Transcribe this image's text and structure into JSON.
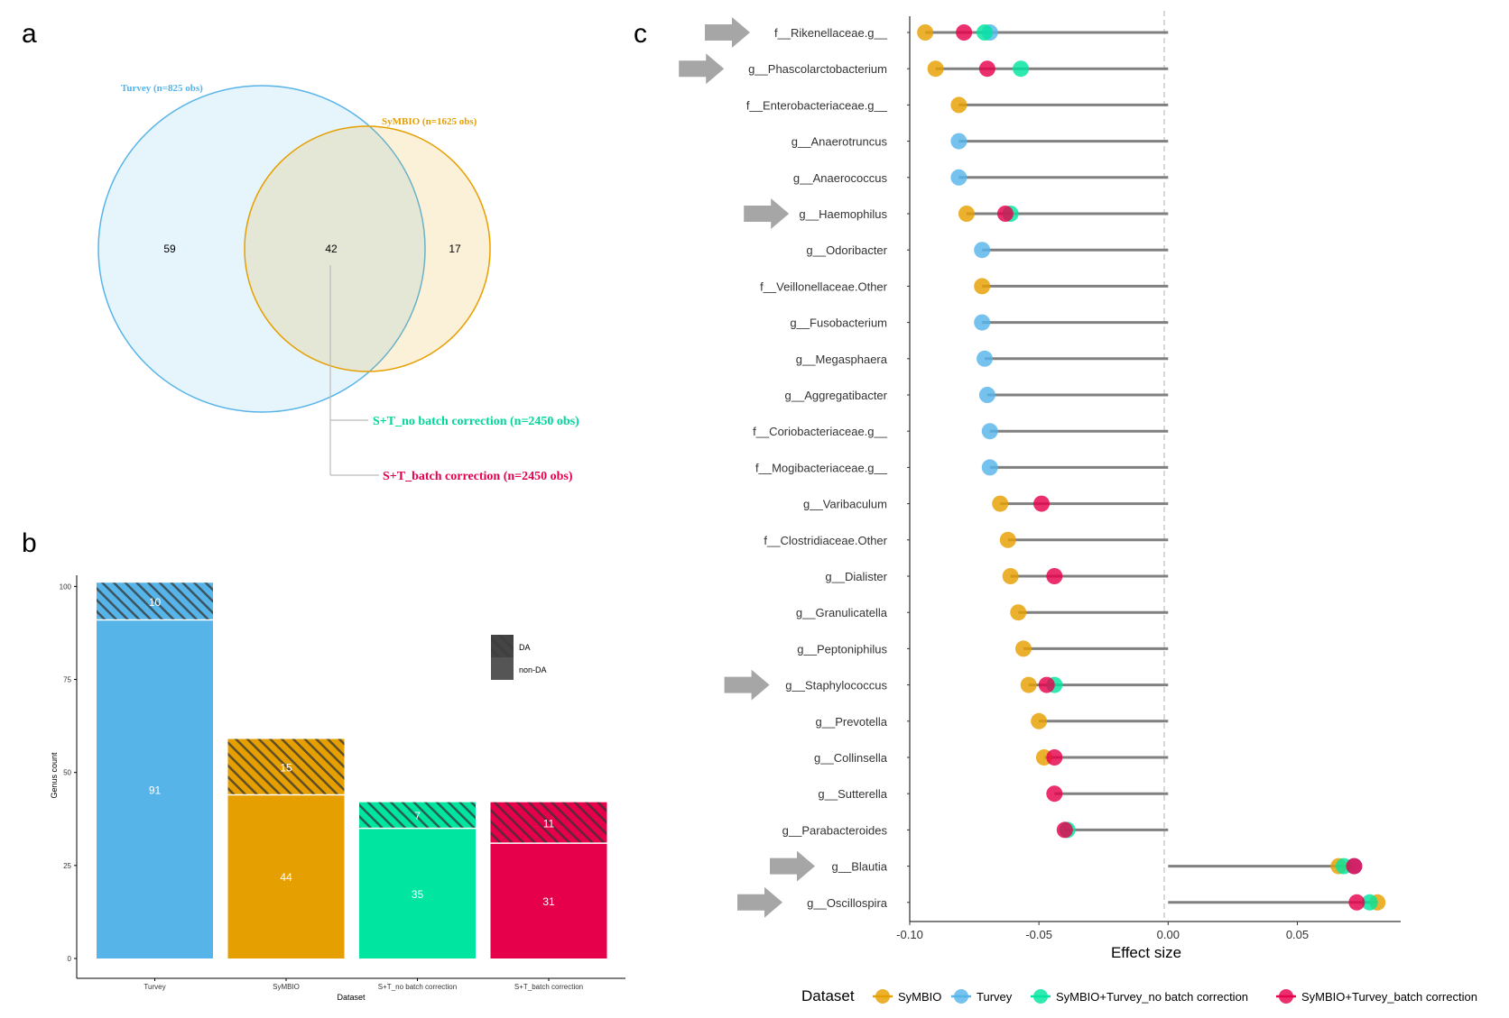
{
  "panels": {
    "a": "a",
    "b": "b",
    "c": "c"
  },
  "colors": {
    "turvey": "#56B4E9",
    "symbio": "#E69F00",
    "no_batch": "#00E5A0",
    "batch": "#E6004C",
    "arrow": "#A6A6A6",
    "stem": "#808080"
  },
  "chart_data": [
    {
      "type": "venn",
      "sets": [
        {
          "label": "Turvey (n=825 obs)",
          "only": "59"
        },
        {
          "label": "SyMBIO (n=1625 obs)",
          "only": "17"
        }
      ],
      "intersection": "42",
      "annotations": [
        "S+T_no batch correction (n=2450 obs)",
        "S+T_batch correction (n=2450 obs)"
      ]
    },
    {
      "type": "bar",
      "stacked": true,
      "xlabel": "Dataset",
      "ylabel": "Genus count",
      "ylim": [
        0,
        103
      ],
      "yticks": [
        0,
        25,
        50,
        75,
        100
      ],
      "categories": [
        "Turvey",
        "SyMBIO",
        "S+T_no batch correction",
        "S+T_batch correction"
      ],
      "series": [
        {
          "name": "non-DA",
          "values": [
            91,
            44,
            35,
            31
          ]
        },
        {
          "name": "DA",
          "values": [
            10,
            15,
            7,
            11
          ]
        }
      ],
      "legend": [
        "DA",
        "non-DA"
      ],
      "legend_position": "right"
    },
    {
      "type": "scatter",
      "subtype": "lollipop",
      "xlabel": "Effect size",
      "xlim": [
        -0.1,
        0.09
      ],
      "xticks": [
        "-0.10",
        "-0.05",
        "0.00",
        "0.05"
      ],
      "legend_title": "Dataset",
      "legend_position": "bottom",
      "series_names": [
        "SyMBIO",
        "Turvey",
        "SyMBIO+Turvey_no batch correction",
        "SyMBIO+Turvey_batch correction"
      ],
      "rows": [
        {
          "label": "f__Rikenellaceae.g__",
          "arrow": true,
          "symbio": -0.094,
          "turvey": -0.069,
          "no_batch": -0.071,
          "batch": -0.079
        },
        {
          "label": "g__Phascolarctobacterium",
          "arrow": true,
          "symbio": -0.09,
          "turvey": null,
          "no_batch": -0.057,
          "batch": -0.07
        },
        {
          "label": "f__Enterobacteriaceae.g__",
          "arrow": false,
          "symbio": -0.081,
          "turvey": null,
          "no_batch": null,
          "batch": null
        },
        {
          "label": "g__Anaerotruncus",
          "arrow": false,
          "symbio": null,
          "turvey": -0.081,
          "no_batch": null,
          "batch": null
        },
        {
          "label": "g__Anaerococcus",
          "arrow": false,
          "symbio": null,
          "turvey": -0.081,
          "no_batch": null,
          "batch": null
        },
        {
          "label": "g__Haemophilus",
          "arrow": true,
          "symbio": -0.078,
          "turvey": null,
          "no_batch": -0.061,
          "batch": -0.063
        },
        {
          "label": "g__Odoribacter",
          "arrow": false,
          "symbio": null,
          "turvey": -0.072,
          "no_batch": null,
          "batch": null
        },
        {
          "label": "f__Veillonellaceae.Other",
          "arrow": false,
          "symbio": -0.072,
          "turvey": null,
          "no_batch": null,
          "batch": null
        },
        {
          "label": "g__Fusobacterium",
          "arrow": false,
          "symbio": null,
          "turvey": -0.072,
          "no_batch": null,
          "batch": null
        },
        {
          "label": "g__Megasphaera",
          "arrow": false,
          "symbio": null,
          "turvey": -0.071,
          "no_batch": null,
          "batch": null
        },
        {
          "label": "g__Aggregatibacter",
          "arrow": false,
          "symbio": null,
          "turvey": -0.07,
          "no_batch": null,
          "batch": null
        },
        {
          "label": "f__Coriobacteriaceae.g__",
          "arrow": false,
          "symbio": null,
          "turvey": -0.069,
          "no_batch": null,
          "batch": null
        },
        {
          "label": "f__Mogibacteriaceae.g__",
          "arrow": false,
          "symbio": null,
          "turvey": -0.069,
          "no_batch": null,
          "batch": null
        },
        {
          "label": "g__Varibaculum",
          "arrow": false,
          "symbio": -0.065,
          "turvey": null,
          "no_batch": null,
          "batch": -0.049
        },
        {
          "label": "f__Clostridiaceae.Other",
          "arrow": false,
          "symbio": -0.062,
          "turvey": null,
          "no_batch": null,
          "batch": null
        },
        {
          "label": "g__Dialister",
          "arrow": false,
          "symbio": -0.061,
          "turvey": null,
          "no_batch": null,
          "batch": -0.044
        },
        {
          "label": "g__Granulicatella",
          "arrow": false,
          "symbio": -0.058,
          "turvey": null,
          "no_batch": null,
          "batch": null
        },
        {
          "label": "g__Peptoniphilus",
          "arrow": false,
          "symbio": -0.056,
          "turvey": null,
          "no_batch": null,
          "batch": null
        },
        {
          "label": "g__Staphylococcus",
          "arrow": true,
          "symbio": -0.054,
          "turvey": null,
          "no_batch": -0.044,
          "batch": -0.047
        },
        {
          "label": "g__Prevotella",
          "arrow": false,
          "symbio": -0.05,
          "turvey": null,
          "no_batch": null,
          "batch": null
        },
        {
          "label": "g__Collinsella",
          "arrow": false,
          "symbio": -0.048,
          "turvey": null,
          "no_batch": null,
          "batch": -0.044
        },
        {
          "label": "g__Sutterella",
          "arrow": false,
          "symbio": null,
          "turvey": null,
          "no_batch": null,
          "batch": -0.044
        },
        {
          "label": "g__Parabacteroides",
          "arrow": false,
          "symbio": null,
          "turvey": null,
          "no_batch": -0.039,
          "batch": -0.04
        },
        {
          "label": "g__Blautia",
          "arrow": true,
          "symbio": 0.066,
          "turvey": 0.072,
          "no_batch": 0.068,
          "batch": 0.072
        },
        {
          "label": "g__Oscillospira",
          "arrow": true,
          "symbio": 0.081,
          "turvey": null,
          "no_batch": 0.078,
          "batch": 0.073
        }
      ]
    }
  ]
}
